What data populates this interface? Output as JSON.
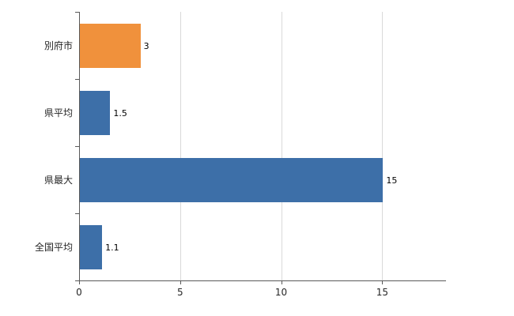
{
  "chart_data": {
    "type": "bar",
    "orientation": "horizontal",
    "title": "",
    "xlabel": "",
    "ylabel": "",
    "categories": [
      "別府市",
      "県平均",
      "県最大",
      "全国平均"
    ],
    "values": [
      3,
      1.5,
      15,
      1.1
    ],
    "value_labels": [
      "3",
      "1.5",
      "15",
      "1.1"
    ],
    "bar_colors": [
      "#f0913c",
      "#3d6fa8",
      "#3d6fa8",
      "#3d6fa8"
    ],
    "x_ticks": [
      0,
      5,
      10,
      15
    ],
    "x_tick_labels": [
      "0",
      "5",
      "10",
      "15"
    ],
    "xlim": [
      0,
      18
    ],
    "grid": true,
    "legend": "none",
    "colors": {
      "highlight_bar": "#f0913c",
      "default_bar": "#3d6fa8",
      "gridline": "#d9d9d9",
      "axis": "#595959",
      "text": "#262626",
      "background": "#ffffff"
    }
  }
}
